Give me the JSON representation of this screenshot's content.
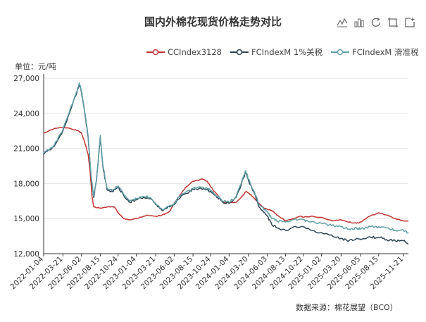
{
  "chart_data": {
    "type": "line",
    "title": "国内外棉花现货价格走势对比",
    "y_unit": "单位：元/吨",
    "ylim": [
      12000,
      27000
    ],
    "y_ticks": [
      "12,000",
      "15,000",
      "18,000",
      "21,000",
      "24,000",
      "27,000"
    ],
    "y_tick_values": [
      12000,
      15000,
      18000,
      21000,
      24000,
      27000
    ],
    "x_range": [
      "2022-01-04",
      "2025-12-10"
    ],
    "x_tick_labels": [
      "2022-01-04",
      "2022-03-21",
      "2022-06-02",
      "2022-08-15",
      "2022-10-24",
      "2023-01-04",
      "2023-03-21",
      "2023-06-02",
      "2023-08-15",
      "2023-10-24",
      "2024-01-04",
      "2024-03-20",
      "2024-06-03",
      "2024-08-13",
      "2024-10-22",
      "2025-01-02",
      "2025-03-20",
      "2025-06-05",
      "2025-08-15",
      "2025-11-21"
    ],
    "grid": true,
    "legend_position": "top",
    "series": [
      {
        "name": "CCIndex3128",
        "color": "#c23531",
        "points": [
          [
            "2022-01-04",
            22300
          ],
          [
            "2022-02-15",
            22700
          ],
          [
            "2022-03-21",
            22800
          ],
          [
            "2022-04-20",
            22700
          ],
          [
            "2022-05-20",
            22500
          ],
          [
            "2022-06-02",
            22300
          ],
          [
            "2022-06-15",
            21500
          ],
          [
            "2022-06-28",
            20500
          ],
          [
            "2022-07-06",
            19000
          ],
          [
            "2022-07-13",
            17000
          ],
          [
            "2022-07-20",
            16000
          ],
          [
            "2022-08-15",
            15900
          ],
          [
            "2022-09-15",
            16000
          ],
          [
            "2022-10-10",
            16000
          ],
          [
            "2022-10-24",
            15500
          ],
          [
            "2022-11-15",
            15000
          ],
          [
            "2022-12-10",
            14900
          ],
          [
            "2023-01-04",
            15000
          ],
          [
            "2023-02-15",
            15300
          ],
          [
            "2023-03-21",
            15200
          ],
          [
            "2023-04-15",
            15300
          ],
          [
            "2023-05-15",
            15600
          ],
          [
            "2023-06-02",
            16300
          ],
          [
            "2023-06-25",
            17000
          ],
          [
            "2023-07-15",
            17600
          ],
          [
            "2023-08-15",
            18200
          ],
          [
            "2023-09-10",
            18300
          ],
          [
            "2023-09-20",
            18400
          ],
          [
            "2023-10-10",
            18200
          ],
          [
            "2023-10-24",
            17700
          ],
          [
            "2023-11-20",
            17000
          ],
          [
            "2023-12-10",
            16400
          ],
          [
            "2024-01-04",
            16400
          ],
          [
            "2024-02-01",
            16400
          ],
          [
            "2024-02-20",
            16800
          ],
          [
            "2024-03-10",
            17300
          ],
          [
            "2024-03-20",
            17200
          ],
          [
            "2024-04-10",
            16800
          ],
          [
            "2024-05-01",
            16300
          ],
          [
            "2024-05-20",
            15900
          ],
          [
            "2024-06-03",
            15800
          ],
          [
            "2024-06-20",
            15700
          ],
          [
            "2024-07-10",
            15300
          ],
          [
            "2024-08-13",
            14800
          ],
          [
            "2024-09-15",
            15000
          ],
          [
            "2024-10-10",
            15200
          ],
          [
            "2024-10-22",
            15100
          ],
          [
            "2024-11-20",
            15200
          ],
          [
            "2025-01-02",
            15100
          ],
          [
            "2025-02-15",
            14800
          ],
          [
            "2025-03-20",
            14900
          ],
          [
            "2025-04-20",
            14700
          ],
          [
            "2025-05-20",
            14600
          ],
          [
            "2025-06-05",
            14700
          ],
          [
            "2025-07-10",
            15200
          ],
          [
            "2025-08-15",
            15500
          ],
          [
            "2025-09-15",
            15300
          ],
          [
            "2025-10-20",
            15000
          ],
          [
            "2025-11-21",
            14800
          ],
          [
            "2025-12-10",
            14800
          ]
        ]
      },
      {
        "name": "FCIndexM 1%关税",
        "color": "#2f4554",
        "points": [
          [
            "2022-01-04",
            20500
          ],
          [
            "2022-02-15",
            21200
          ],
          [
            "2022-03-21",
            22500
          ],
          [
            "2022-04-15",
            24000
          ],
          [
            "2022-05-10",
            25500
          ],
          [
            "2022-05-25",
            26500
          ],
          [
            "2022-06-02",
            25800
          ],
          [
            "2022-06-15",
            24000
          ],
          [
            "2022-06-28",
            22000
          ],
          [
            "2022-07-10",
            18500
          ],
          [
            "2022-07-20",
            16800
          ],
          [
            "2022-08-01",
            18500
          ],
          [
            "2022-08-15",
            22000
          ],
          [
            "2022-08-25",
            19500
          ],
          [
            "2022-09-10",
            17500
          ],
          [
            "2022-10-01",
            17300
          ],
          [
            "2022-10-24",
            17700
          ],
          [
            "2022-11-15",
            17000
          ],
          [
            "2022-12-10",
            16400
          ],
          [
            "2023-01-04",
            16600
          ],
          [
            "2023-02-01",
            16800
          ],
          [
            "2023-03-01",
            16700
          ],
          [
            "2023-03-21",
            16200
          ],
          [
            "2023-04-15",
            15700
          ],
          [
            "2023-05-15",
            16000
          ],
          [
            "2023-06-02",
            16200
          ],
          [
            "2023-07-01",
            17000
          ],
          [
            "2023-08-01",
            17300
          ],
          [
            "2023-08-15",
            17500
          ],
          [
            "2023-09-15",
            17600
          ],
          [
            "2023-10-15",
            17400
          ],
          [
            "2023-10-24",
            17300
          ],
          [
            "2023-11-20",
            16800
          ],
          [
            "2023-12-10",
            16400
          ],
          [
            "2024-01-04",
            16300
          ],
          [
            "2024-02-01",
            16800
          ],
          [
            "2024-03-01",
            18500
          ],
          [
            "2024-03-10",
            19000
          ],
          [
            "2024-03-20",
            18300
          ],
          [
            "2024-04-10",
            17300
          ],
          [
            "2024-05-01",
            16000
          ],
          [
            "2024-05-20",
            15500
          ],
          [
            "2024-06-03",
            15200
          ],
          [
            "2024-06-20",
            14500
          ],
          [
            "2024-07-10",
            14200
          ],
          [
            "2024-08-13",
            14000
          ],
          [
            "2024-09-15",
            14300
          ],
          [
            "2024-10-22",
            14300
          ],
          [
            "2024-11-20",
            14000
          ],
          [
            "2025-01-02",
            13800
          ],
          [
            "2025-02-10",
            13600
          ],
          [
            "2025-03-20",
            13300
          ],
          [
            "2025-04-20",
            13100
          ],
          [
            "2025-05-20",
            13300
          ],
          [
            "2025-06-05",
            13200
          ],
          [
            "2025-07-15",
            13400
          ],
          [
            "2025-08-15",
            13400
          ],
          [
            "2025-09-15",
            13200
          ],
          [
            "2025-10-20",
            13100
          ],
          [
            "2025-11-21",
            13100
          ],
          [
            "2025-12-10",
            12800
          ]
        ]
      },
      {
        "name": "FCIndexM 滑准税",
        "color": "#61a0a8",
        "points": [
          [
            "2022-01-04",
            20600
          ],
          [
            "2022-02-15",
            21300
          ],
          [
            "2022-03-21",
            22600
          ],
          [
            "2022-04-15",
            24100
          ],
          [
            "2022-05-10",
            25600
          ],
          [
            "2022-05-25",
            26600
          ],
          [
            "2022-06-02",
            25900
          ],
          [
            "2022-06-15",
            24100
          ],
          [
            "2022-06-28",
            22100
          ],
          [
            "2022-07-10",
            18600
          ],
          [
            "2022-07-20",
            16900
          ],
          [
            "2022-08-01",
            18600
          ],
          [
            "2022-08-15",
            22100
          ],
          [
            "2022-08-25",
            19600
          ],
          [
            "2022-09-10",
            17600
          ],
          [
            "2022-10-01",
            17400
          ],
          [
            "2022-10-24",
            17800
          ],
          [
            "2022-11-15",
            17100
          ],
          [
            "2022-12-10",
            16500
          ],
          [
            "2023-01-04",
            16700
          ],
          [
            "2023-02-01",
            16900
          ],
          [
            "2023-03-01",
            16800
          ],
          [
            "2023-03-21",
            16300
          ],
          [
            "2023-04-15",
            15800
          ],
          [
            "2023-05-15",
            16100
          ],
          [
            "2023-06-02",
            16300
          ],
          [
            "2023-07-01",
            17100
          ],
          [
            "2023-08-01",
            17400
          ],
          [
            "2023-08-15",
            17600
          ],
          [
            "2023-09-15",
            17700
          ],
          [
            "2023-10-15",
            17500
          ],
          [
            "2023-10-24",
            17400
          ],
          [
            "2023-11-20",
            16900
          ],
          [
            "2023-12-10",
            16500
          ],
          [
            "2024-01-04",
            16400
          ],
          [
            "2024-02-01",
            16900
          ],
          [
            "2024-03-01",
            18600
          ],
          [
            "2024-03-10",
            19100
          ],
          [
            "2024-03-20",
            18400
          ],
          [
            "2024-04-10",
            17400
          ],
          [
            "2024-05-01",
            16200
          ],
          [
            "2024-05-20",
            15800
          ],
          [
            "2024-06-03",
            15600
          ],
          [
            "2024-06-20",
            15000
          ],
          [
            "2024-07-10",
            14800
          ],
          [
            "2024-08-13",
            14700
          ],
          [
            "2024-09-15",
            14900
          ],
          [
            "2024-10-22",
            14900
          ],
          [
            "2024-11-20",
            14700
          ],
          [
            "2025-01-02",
            14600
          ],
          [
            "2025-02-10",
            14400
          ],
          [
            "2025-03-20",
            14300
          ],
          [
            "2025-04-20",
            14100
          ],
          [
            "2025-05-20",
            14200
          ],
          [
            "2025-06-05",
            14100
          ],
          [
            "2025-07-15",
            14300
          ],
          [
            "2025-08-15",
            14300
          ],
          [
            "2025-09-15",
            14200
          ],
          [
            "2025-10-20",
            14000
          ],
          [
            "2025-11-21",
            14000
          ],
          [
            "2025-12-10",
            13800
          ]
        ]
      }
    ],
    "source": "数据来源：棉花展望（BCO）"
  },
  "toolbox": {
    "icons": [
      "data-view-icon",
      "line-chart-icon",
      "bar-chart-icon",
      "restore-icon",
      "save-image-icon"
    ]
  }
}
